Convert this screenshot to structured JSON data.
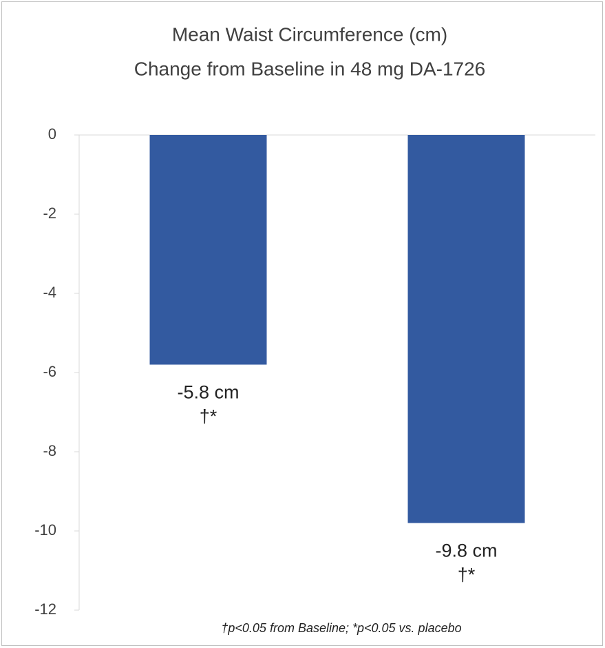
{
  "chart_data": {
    "type": "bar",
    "title": [
      "Mean Waist Circumference (cm)",
      "Change from Baseline in 48 mg DA-1726"
    ],
    "categories": [
      null,
      null
    ],
    "values": [
      -5.8,
      -9.8
    ],
    "value_labels": [
      "-5.8 cm",
      "-9.8 cm"
    ],
    "annotations": [
      "†*",
      "†*"
    ],
    "footnote": "†p<0.05 from Baseline; *p<0.05 vs. placebo",
    "color": "#335aa0",
    "ylim": [
      -12,
      0
    ],
    "yticks": [
      0,
      -2,
      -4,
      -6,
      -8,
      -10,
      -12
    ],
    "grid": false
  }
}
